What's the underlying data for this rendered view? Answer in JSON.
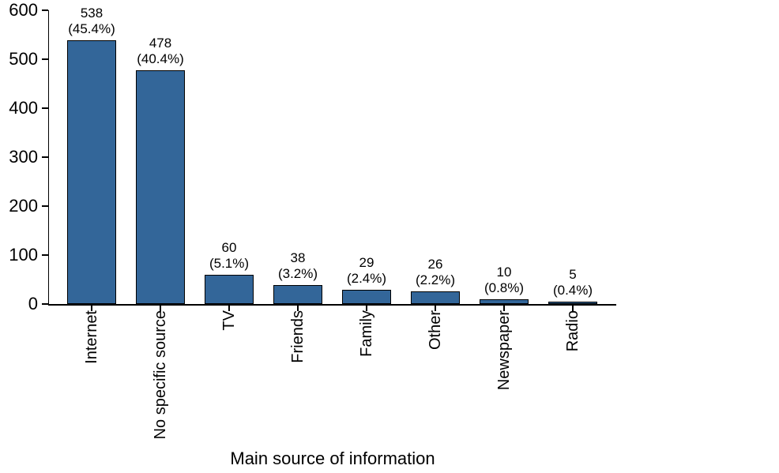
{
  "chart_data": {
    "type": "bar",
    "title": "",
    "xlabel": "Main source of information",
    "ylabel": "",
    "categories": [
      "Internet",
      "No specific source",
      "TV",
      "Friends",
      "Family",
      "Other",
      "Newspaper",
      "Radio"
    ],
    "values": [
      538,
      478,
      60,
      38,
      29,
      26,
      10,
      5
    ],
    "percent_labels": [
      "(45.4%)",
      "(40.4%)",
      "(5.1%)",
      "(3.2%)",
      "(2.4%)",
      "(2.2%)",
      "(0.8%)",
      "(0.4%)"
    ],
    "ylim": [
      0,
      600
    ],
    "yticks": [
      0,
      100,
      200,
      300,
      400,
      500,
      600
    ],
    "grid": false,
    "legend": null,
    "bar_color": "#336699",
    "bar_edge_color": "#000000",
    "axis_color": "#000000",
    "text_color": "#000000"
  }
}
